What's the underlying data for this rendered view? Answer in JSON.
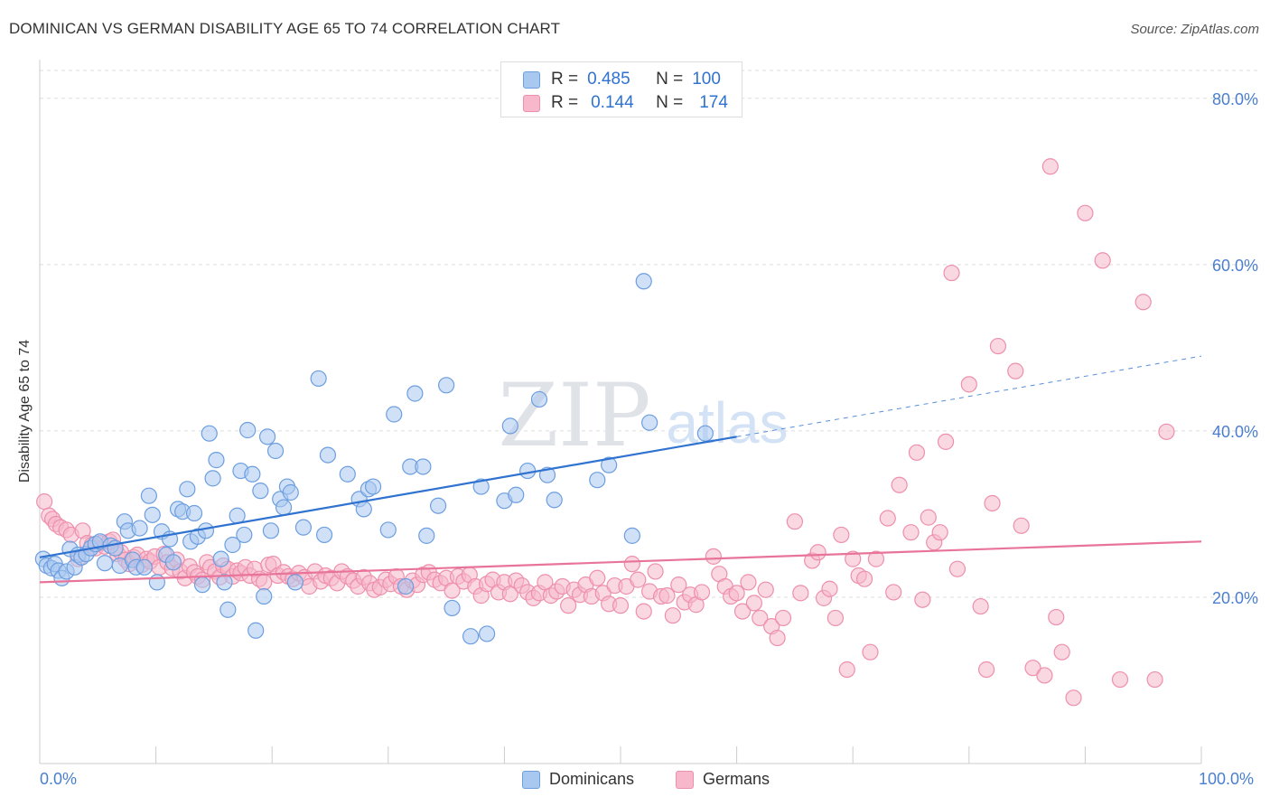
{
  "title": "DOMINICAN VS GERMAN DISABILITY AGE 65 TO 74 CORRELATION CHART",
  "source": "Source: ZipAtlas.com",
  "watermark": {
    "zip": "ZIP",
    "atlas": "atlas"
  },
  "stats_box": {
    "rows": [
      {
        "r_label": "R =",
        "r_value": "0.485",
        "n_label": "N =",
        "n_value": "100"
      },
      {
        "r_label": "R =",
        "r_value": "0.144",
        "n_label": "N =",
        "n_value": "174"
      }
    ]
  },
  "legend": {
    "items": [
      "Dominicans",
      "Germans"
    ]
  },
  "colors": {
    "blue_fill": "#a9c8f0",
    "blue_stroke": "#6c9ee0",
    "blue_line": "#2f72d0",
    "pink_fill": "#f6b8ca",
    "pink_stroke": "#ee8fac",
    "pink_line": "#e8749a",
    "tick_text": "#4a7fd0",
    "grid": "#dddddd"
  },
  "chart_data": {
    "type": "scatter",
    "title": "DOMINICAN VS GERMAN DISABILITY AGE 65 TO 74 CORRELATION CHART",
    "xlabel": "",
    "ylabel": "Disability Age 65 to 74",
    "xlim": [
      0,
      100
    ],
    "ylim": [
      0,
      84
    ],
    "x_tick_labels": [
      "0.0%",
      "100.0%"
    ],
    "y_ticks": [
      20,
      40,
      60,
      80
    ],
    "y_tick_labels": [
      "20.0%",
      "40.0%",
      "60.0%",
      "80.0%"
    ],
    "grid": true,
    "legend_position": "bottom",
    "series": [
      {
        "name": "Dominicans",
        "r": 0.485,
        "n": 100,
        "trend": {
          "x0": 0,
          "y0": 24.8,
          "x1": 60,
          "y1": 39.3,
          "dashed_to_x": 100,
          "dashed_to_y": 49.0
        },
        "points": [
          [
            0.3,
            24.6
          ],
          [
            0.6,
            23.8
          ],
          [
            1.0,
            23.5
          ],
          [
            1.3,
            24.0
          ],
          [
            1.6,
            23.2
          ],
          [
            1.9,
            22.3
          ],
          [
            2.3,
            23.1
          ],
          [
            2.6,
            25.8
          ],
          [
            3.0,
            23.6
          ],
          [
            3.3,
            25.1
          ],
          [
            3.6,
            24.8
          ],
          [
            4.0,
            25.2
          ],
          [
            4.4,
            25.9
          ],
          [
            4.8,
            26.4
          ],
          [
            5.2,
            26.7
          ],
          [
            5.6,
            24.1
          ],
          [
            6.1,
            26.2
          ],
          [
            6.5,
            25.9
          ],
          [
            6.9,
            23.8
          ],
          [
            7.3,
            29.1
          ],
          [
            7.6,
            28.0
          ],
          [
            8.0,
            24.5
          ],
          [
            8.3,
            23.6
          ],
          [
            8.6,
            28.3
          ],
          [
            9.0,
            23.6
          ],
          [
            9.4,
            32.2
          ],
          [
            9.7,
            29.9
          ],
          [
            10.1,
            21.8
          ],
          [
            10.5,
            27.9
          ],
          [
            10.9,
            25.1
          ],
          [
            11.2,
            27.0
          ],
          [
            11.5,
            24.2
          ],
          [
            11.9,
            30.6
          ],
          [
            12.3,
            30.3
          ],
          [
            12.7,
            33.0
          ],
          [
            13.0,
            26.7
          ],
          [
            13.3,
            30.1
          ],
          [
            13.6,
            27.3
          ],
          [
            14.0,
            21.5
          ],
          [
            14.3,
            28.0
          ],
          [
            14.6,
            39.7
          ],
          [
            14.9,
            34.3
          ],
          [
            15.2,
            36.5
          ],
          [
            15.6,
            24.6
          ],
          [
            15.9,
            21.8
          ],
          [
            16.2,
            18.5
          ],
          [
            16.6,
            26.3
          ],
          [
            17.0,
            29.8
          ],
          [
            17.3,
            35.2
          ],
          [
            17.6,
            27.5
          ],
          [
            17.9,
            40.1
          ],
          [
            18.3,
            34.8
          ],
          [
            18.6,
            16.0
          ],
          [
            19.0,
            32.8
          ],
          [
            19.3,
            20.1
          ],
          [
            19.6,
            39.3
          ],
          [
            19.9,
            28.0
          ],
          [
            20.3,
            37.6
          ],
          [
            20.7,
            31.8
          ],
          [
            21.0,
            30.8
          ],
          [
            21.3,
            33.3
          ],
          [
            21.6,
            32.6
          ],
          [
            22.0,
            21.8
          ],
          [
            22.7,
            28.4
          ],
          [
            24.0,
            46.3
          ],
          [
            24.5,
            27.5
          ],
          [
            24.8,
            37.1
          ],
          [
            26.5,
            34.8
          ],
          [
            27.5,
            31.8
          ],
          [
            27.9,
            30.6
          ],
          [
            28.3,
            33.0
          ],
          [
            28.7,
            33.3
          ],
          [
            30.0,
            28.1
          ],
          [
            30.5,
            42.0
          ],
          [
            31.5,
            21.3
          ],
          [
            31.9,
            35.7
          ],
          [
            32.3,
            44.5
          ],
          [
            33.0,
            35.7
          ],
          [
            33.3,
            27.4
          ],
          [
            34.3,
            31.0
          ],
          [
            35.0,
            45.5
          ],
          [
            35.5,
            18.7
          ],
          [
            37.1,
            15.3
          ],
          [
            38.0,
            33.3
          ],
          [
            38.5,
            15.6
          ],
          [
            40.0,
            31.6
          ],
          [
            40.5,
            40.6
          ],
          [
            41.0,
            32.3
          ],
          [
            42.0,
            35.2
          ],
          [
            43.0,
            43.8
          ],
          [
            43.7,
            34.7
          ],
          [
            44.3,
            31.7
          ],
          [
            48.0,
            34.1
          ],
          [
            49.0,
            35.9
          ],
          [
            51.0,
            27.4
          ],
          [
            52.0,
            58.0
          ],
          [
            52.5,
            41.0
          ],
          [
            57.3,
            39.7
          ]
        ]
      },
      {
        "name": "Germans",
        "r": 0.144,
        "n": 174,
        "trend": {
          "x0": 0,
          "y0": 21.8,
          "x1": 100,
          "y1": 26.7
        },
        "points": [
          [
            0.4,
            31.5
          ],
          [
            0.8,
            29.8
          ],
          [
            1.1,
            29.4
          ],
          [
            1.4,
            28.8
          ],
          [
            1.8,
            28.4
          ],
          [
            2.3,
            28.1
          ],
          [
            2.7,
            27.5
          ],
          [
            3.3,
            24.6
          ],
          [
            3.7,
            28.0
          ],
          [
            4.1,
            26.5
          ],
          [
            4.5,
            26.3
          ],
          [
            4.8,
            25.9
          ],
          [
            5.2,
            26.5
          ],
          [
            5.6,
            26.1
          ],
          [
            6.0,
            26.7
          ],
          [
            6.3,
            26.9
          ],
          [
            6.7,
            25.2
          ],
          [
            7.0,
            25.4
          ],
          [
            7.4,
            24.5
          ],
          [
            7.7,
            24.0
          ],
          [
            8.1,
            24.8
          ],
          [
            8.4,
            25.1
          ],
          [
            8.8,
            23.9
          ],
          [
            9.2,
            24.6
          ],
          [
            9.5,
            24.3
          ],
          [
            9.9,
            24.9
          ],
          [
            10.3,
            23.6
          ],
          [
            10.7,
            25.2
          ],
          [
            11.0,
            24.2
          ],
          [
            11.4,
            23.5
          ],
          [
            11.8,
            24.5
          ],
          [
            12.1,
            23.1
          ],
          [
            12.5,
            22.3
          ],
          [
            12.9,
            23.7
          ],
          [
            13.3,
            23.0
          ],
          [
            13.6,
            22.5
          ],
          [
            14.0,
            22.1
          ],
          [
            14.4,
            24.2
          ],
          [
            14.7,
            23.6
          ],
          [
            15.1,
            23.1
          ],
          [
            15.5,
            22.4
          ],
          [
            15.8,
            23.8
          ],
          [
            16.2,
            23.4
          ],
          [
            16.6,
            22.5
          ],
          [
            17.0,
            23.2
          ],
          [
            17.3,
            22.9
          ],
          [
            17.7,
            23.6
          ],
          [
            18.1,
            22.6
          ],
          [
            18.5,
            23.4
          ],
          [
            18.9,
            22.2
          ],
          [
            19.3,
            21.8
          ],
          [
            19.7,
            23.9
          ],
          [
            20.1,
            24.0
          ],
          [
            20.5,
            22.6
          ],
          [
            21.0,
            23.0
          ],
          [
            21.4,
            22.5
          ],
          [
            21.8,
            22.2
          ],
          [
            22.3,
            22.9
          ],
          [
            22.8,
            22.4
          ],
          [
            23.2,
            21.3
          ],
          [
            23.7,
            23.1
          ],
          [
            24.2,
            21.9
          ],
          [
            24.6,
            22.6
          ],
          [
            25.1,
            22.3
          ],
          [
            25.6,
            21.7
          ],
          [
            26.0,
            23.1
          ],
          [
            26.5,
            22.5
          ],
          [
            27.0,
            22.0
          ],
          [
            27.4,
            21.3
          ],
          [
            27.9,
            22.4
          ],
          [
            28.4,
            21.7
          ],
          [
            28.8,
            20.9
          ],
          [
            29.3,
            21.2
          ],
          [
            29.8,
            22.1
          ],
          [
            30.2,
            21.6
          ],
          [
            30.7,
            22.5
          ],
          [
            31.1,
            21.3
          ],
          [
            31.6,
            20.9
          ],
          [
            32.1,
            22.0
          ],
          [
            32.5,
            21.5
          ],
          [
            33.0,
            22.7
          ],
          [
            33.5,
            23.0
          ],
          [
            34.0,
            22.1
          ],
          [
            34.5,
            21.7
          ],
          [
            35.0,
            22.3
          ],
          [
            35.5,
            20.8
          ],
          [
            36.0,
            22.5
          ],
          [
            36.5,
            21.9
          ],
          [
            37.0,
            22.7
          ],
          [
            37.5,
            21.3
          ],
          [
            38.0,
            20.2
          ],
          [
            38.5,
            21.6
          ],
          [
            39.0,
            22.1
          ],
          [
            39.5,
            20.6
          ],
          [
            40.0,
            21.8
          ],
          [
            40.5,
            20.4
          ],
          [
            41.0,
            22.0
          ],
          [
            41.5,
            21.4
          ],
          [
            42.0,
            20.6
          ],
          [
            42.5,
            19.9
          ],
          [
            43.0,
            20.5
          ],
          [
            43.5,
            21.8
          ],
          [
            44.0,
            20.2
          ],
          [
            44.5,
            20.7
          ],
          [
            45.0,
            21.3
          ],
          [
            45.5,
            19.0
          ],
          [
            46.0,
            20.9
          ],
          [
            46.5,
            20.3
          ],
          [
            47.0,
            21.5
          ],
          [
            47.5,
            20.1
          ],
          [
            48.0,
            22.3
          ],
          [
            48.5,
            20.5
          ],
          [
            49.0,
            19.2
          ],
          [
            49.5,
            21.4
          ],
          [
            50.0,
            19.0
          ],
          [
            50.5,
            21.3
          ],
          [
            51.0,
            24.0
          ],
          [
            51.5,
            22.1
          ],
          [
            52.0,
            18.3
          ],
          [
            52.5,
            20.7
          ],
          [
            53.0,
            23.1
          ],
          [
            53.5,
            20.1
          ],
          [
            54.0,
            20.2
          ],
          [
            54.5,
            17.8
          ],
          [
            55.0,
            21.5
          ],
          [
            55.5,
            19.4
          ],
          [
            56.0,
            20.3
          ],
          [
            56.5,
            19.1
          ],
          [
            57.0,
            20.6
          ],
          [
            58.0,
            24.9
          ],
          [
            58.5,
            22.8
          ],
          [
            59.0,
            21.3
          ],
          [
            59.5,
            20.1
          ],
          [
            60.0,
            20.5
          ],
          [
            60.5,
            18.3
          ],
          [
            61.0,
            21.8
          ],
          [
            61.5,
            19.3
          ],
          [
            62.0,
            17.5
          ],
          [
            62.5,
            20.9
          ],
          [
            63.0,
            16.5
          ],
          [
            63.5,
            15.1
          ],
          [
            64.0,
            17.5
          ],
          [
            65.0,
            29.1
          ],
          [
            65.5,
            20.5
          ],
          [
            66.5,
            24.4
          ],
          [
            67.0,
            25.4
          ],
          [
            67.5,
            19.9
          ],
          [
            68.0,
            21.0
          ],
          [
            68.5,
            17.5
          ],
          [
            69.0,
            27.5
          ],
          [
            69.5,
            11.3
          ],
          [
            70.0,
            24.6
          ],
          [
            70.5,
            22.6
          ],
          [
            71.0,
            22.2
          ],
          [
            71.5,
            13.4
          ],
          [
            72.0,
            24.6
          ],
          [
            73.0,
            29.5
          ],
          [
            73.5,
            20.6
          ],
          [
            74.0,
            33.5
          ],
          [
            75.0,
            27.8
          ],
          [
            75.5,
            37.4
          ],
          [
            76.0,
            19.7
          ],
          [
            76.5,
            29.6
          ],
          [
            77.0,
            26.6
          ],
          [
            77.5,
            27.8
          ],
          [
            78.0,
            38.7
          ],
          [
            78.5,
            59.0
          ],
          [
            79.0,
            23.4
          ],
          [
            80.0,
            45.6
          ],
          [
            81.0,
            18.9
          ],
          [
            81.5,
            11.3
          ],
          [
            82.0,
            31.3
          ],
          [
            82.5,
            50.2
          ],
          [
            84.0,
            47.2
          ],
          [
            84.5,
            28.6
          ],
          [
            85.5,
            11.5
          ],
          [
            86.5,
            10.6
          ],
          [
            87.0,
            71.8
          ],
          [
            87.5,
            17.6
          ],
          [
            88.0,
            13.4
          ],
          [
            89.0,
            7.9
          ],
          [
            90.0,
            66.2
          ],
          [
            91.5,
            60.5
          ],
          [
            93.0,
            10.1
          ],
          [
            95.0,
            55.5
          ],
          [
            96.0,
            10.1
          ],
          [
            97.0,
            39.9
          ]
        ]
      }
    ]
  }
}
